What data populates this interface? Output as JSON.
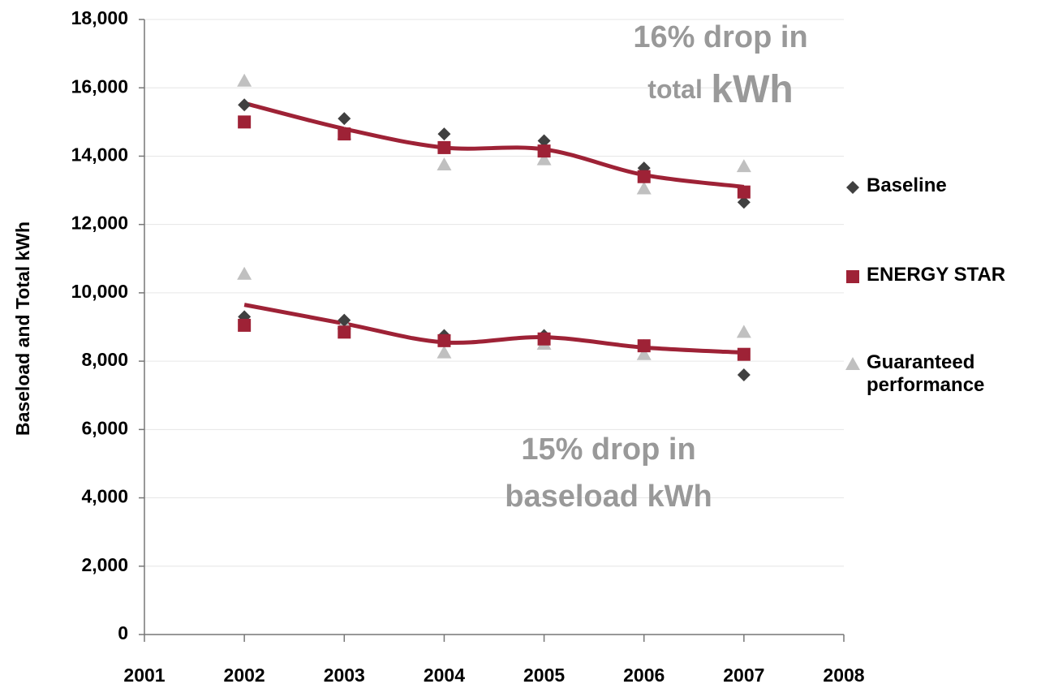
{
  "chart_data": {
    "type": "scatter",
    "y_label": "Baseload and Total kWh",
    "x": [
      2002,
      2003,
      2004,
      2005,
      2006,
      2007,
      2002,
      2003,
      2004,
      2005,
      2006,
      2007
    ],
    "series": [
      {
        "name": "Baseline",
        "color": "#404040",
        "marker": "diamond",
        "values": [
          15500,
          15100,
          14650,
          14450,
          13650,
          12650,
          9300,
          9200,
          8750,
          8750,
          8450,
          7600
        ]
      },
      {
        "name": "ENERGY STAR",
        "color": "#9e2236",
        "marker": "square",
        "values": [
          15000,
          14650,
          14250,
          14150,
          13400,
          12950,
          9050,
          8850,
          8600,
          8650,
          8450,
          8200
        ]
      },
      {
        "name": "Guaranteed performance",
        "color": "#c0c0c0",
        "marker": "triangle",
        "values": [
          16200,
          14650,
          13750,
          13900,
          13050,
          13700,
          10550,
          9100,
          8250,
          8500,
          8200,
          8850
        ]
      }
    ],
    "trend_lines": [
      {
        "color": "#9e2236",
        "x": [
          2002,
          2003,
          2004,
          2005,
          2006,
          2007
        ],
        "values": [
          15550,
          14800,
          14250,
          14200,
          13450,
          13100
        ]
      },
      {
        "color": "#9e2236",
        "x": [
          2002,
          2003,
          2004,
          2005,
          2006,
          2007
        ],
        "values": [
          9650,
          9100,
          8550,
          8700,
          8400,
          8250
        ]
      }
    ],
    "annotations": [
      [
        "16% drop in",
        "total",
        "kWh"
      ],
      [
        "15% drop in",
        "baseload kWh"
      ]
    ],
    "xlim": [
      2001,
      2008
    ],
    "xticks": [
      2001,
      2002,
      2003,
      2004,
      2005,
      2006,
      2007,
      2008
    ],
    "ylim": [
      0,
      18000
    ],
    "yticks": [
      0,
      {
        "value": 2000,
        "label": "2,000"
      },
      {
        "value": 4000,
        "label": "4,000"
      },
      {
        "value": 6000,
        "label": "6,000"
      },
      {
        "value": 8000,
        "label": "8,000"
      },
      {
        "value": 10000,
        "label": "10,000"
      },
      {
        "value": 12000,
        "label": "12,000"
      },
      {
        "value": 14000,
        "label": "14,000"
      },
      {
        "value": 16000,
        "label": "16,000"
      },
      {
        "value": 18000,
        "label": "18,000"
      }
    ],
    "grid": true,
    "legend": "right"
  }
}
